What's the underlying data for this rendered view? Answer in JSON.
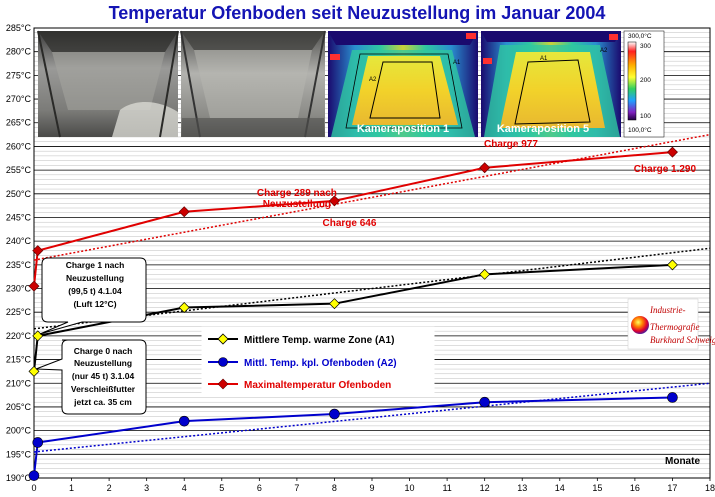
{
  "chart_data": {
    "type": "line",
    "title": "Temperatur Ofenboden seit Neuzustellung im Januar 2004",
    "xlabel": "Monate",
    "ylabel": "",
    "xlim": [
      0,
      18
    ],
    "ylim": [
      190,
      285
    ],
    "x_ticks": [
      "0",
      "1",
      "2",
      "3",
      "4",
      "5",
      "6",
      "7",
      "8",
      "9",
      "10",
      "11",
      "12",
      "13",
      "14",
      "15",
      "16",
      "17",
      "18"
    ],
    "y_ticks": [
      "190°C",
      "195°C",
      "200°C",
      "205°C",
      "210°C",
      "215°C",
      "220°C",
      "225°C",
      "230°C",
      "235°C",
      "240°C",
      "245°C",
      "250°C",
      "255°C",
      "260°C",
      "265°C",
      "270°C",
      "275°C",
      "280°C",
      "285°C"
    ],
    "grid": true,
    "series": [
      {
        "name": "Mittlere Temp. warme Zone (A1)",
        "color": "#000000",
        "marker_color": "#ffff00",
        "marker": "diamond",
        "x": [
          0,
          0.1,
          4,
          8,
          12,
          17
        ],
        "y": [
          212.5,
          220,
          226,
          226.8,
          233,
          235
        ],
        "trend": [
          [
            0,
            221.5
          ],
          [
            18,
            238.5
          ]
        ]
      },
      {
        "name": "Mittl. Temp. kpl. Ofenboden (A2)",
        "color": "#0000cc",
        "marker_color": "#0000cc",
        "marker": "circle",
        "x": [
          0,
          0.1,
          4,
          8,
          12,
          17
        ],
        "y": [
          190.5,
          197.5,
          202,
          203.5,
          206,
          207
        ],
        "trend": [
          [
            0,
            195.5
          ],
          [
            18,
            210
          ]
        ]
      },
      {
        "name": "Maximaltemperatur Ofenboden",
        "color": "#e00000",
        "marker_color": "#cc0000",
        "marker": "diamond",
        "x": [
          0,
          0.1,
          4,
          8,
          12,
          17
        ],
        "y": [
          230.5,
          238,
          246.2,
          248.5,
          255.5,
          258.8
        ],
        "trend": [
          [
            0,
            236
          ],
          [
            18,
            262.5
          ]
        ]
      }
    ],
    "annotations": [
      {
        "text": "Charge 289 nach",
        "x": 7.0,
        "y": 249.5,
        "color": "#e00000"
      },
      {
        "text": "Neuzustellung",
        "x": 7.0,
        "y": 247.2,
        "color": "#e00000"
      },
      {
        "text": "Charge 646",
        "x": 8.4,
        "y": 243.2,
        "color": "#e00000"
      },
      {
        "text": "Charge 977",
        "x": 12.7,
        "y": 259.9,
        "color": "#e00000"
      },
      {
        "text": "Charge 1.290",
        "x": 16.8,
        "y": 254.6,
        "color": "#e00000"
      }
    ],
    "callouts": [
      {
        "lines": [
          "Charge 1 nach",
          "Neuzustellung",
          "(99,5 t) 4.1.04",
          "(Luft 12°C)"
        ],
        "x": 0.1,
        "y": 220
      },
      {
        "lines": [
          "Charge 0 nach",
          "Neuzustellung",
          "(nur 45 t) 3.1.04",
          "Verschleißfutter",
          "jetzt ca. 35 cm"
        ],
        "x": 0,
        "y": 212.5
      }
    ],
    "images": {
      "thermal_captions": [
        "Kameraposition 1",
        "Kameraposition 5"
      ],
      "colorbar_labels": [
        "300,0°C",
        "300",
        "200",
        "100",
        "100,0°C"
      ],
      "logo_lines": [
        "Industrie-",
        "Thermografie",
        "Burkhard Schweiger"
      ]
    }
  }
}
